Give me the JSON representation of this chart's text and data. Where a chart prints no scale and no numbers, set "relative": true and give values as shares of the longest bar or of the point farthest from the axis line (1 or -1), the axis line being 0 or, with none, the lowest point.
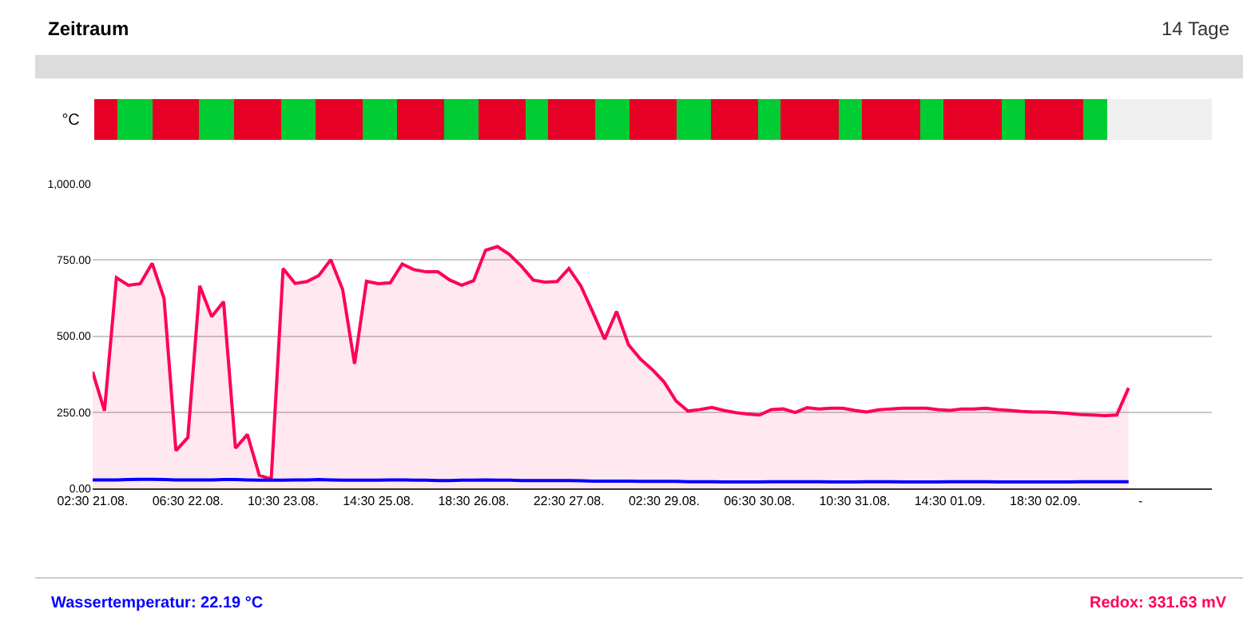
{
  "chart_data": [
    {
      "type": "other",
      "title": "Zeitraum",
      "annotations": [
        "14 Tage"
      ]
    },
    {
      "type": "bar",
      "orientation": "horizontal",
      "stacked": true,
      "relative": true,
      "categories": [
        "°C"
      ],
      "series": [
        {
          "color": "#e60026",
          "values": [
            0.021
          ]
        },
        {
          "color": "#00cc33",
          "values": [
            0.031
          ]
        },
        {
          "color": "#e60026",
          "values": [
            0.042
          ]
        },
        {
          "color": "#00cc33",
          "values": [
            0.031
          ]
        },
        {
          "color": "#e60026",
          "values": [
            0.042
          ]
        },
        {
          "color": "#00cc33",
          "values": [
            0.031
          ]
        },
        {
          "color": "#e60026",
          "values": [
            0.042
          ]
        },
        {
          "color": "#00cc33",
          "values": [
            0.031
          ]
        },
        {
          "color": "#e60026",
          "values": [
            0.042
          ]
        },
        {
          "color": "#00cc33",
          "values": [
            0.031
          ]
        },
        {
          "color": "#e60026",
          "values": [
            0.042
          ]
        },
        {
          "color": "#00cc33",
          "values": [
            0.02
          ]
        },
        {
          "color": "#e60026",
          "values": [
            0.042
          ]
        },
        {
          "color": "#00cc33",
          "values": [
            0.031
          ]
        },
        {
          "color": "#e60026",
          "values": [
            0.042
          ]
        },
        {
          "color": "#00cc33",
          "values": [
            0.031
          ]
        },
        {
          "color": "#e60026",
          "values": [
            0.042
          ]
        },
        {
          "color": "#00cc33",
          "values": [
            0.02
          ]
        },
        {
          "color": "#e60026",
          "values": [
            0.052
          ]
        },
        {
          "color": "#00cc33",
          "values": [
            0.021
          ]
        },
        {
          "color": "#e60026",
          "values": [
            0.052
          ]
        },
        {
          "color": "#00cc33",
          "values": [
            0.021
          ]
        },
        {
          "color": "#e60026",
          "values": [
            0.052
          ]
        },
        {
          "color": "#00cc33",
          "values": [
            0.021
          ]
        },
        {
          "color": "#e60026",
          "values": [
            0.052
          ]
        },
        {
          "color": "#00cc33",
          "values": [
            0.021
          ]
        },
        {
          "color": "#efefef",
          "values": [
            0.094
          ]
        }
      ]
    },
    {
      "type": "line",
      "categories": [
        "02:30 21.08.",
        null,
        null,
        null,
        null,
        null,
        null,
        null,
        "06:30 22.08.",
        null,
        null,
        null,
        null,
        null,
        null,
        null,
        "10:30 23.08.",
        null,
        null,
        null,
        null,
        null,
        null,
        null,
        "14:30 25.08.",
        null,
        null,
        null,
        null,
        null,
        null,
        null,
        "18:30 26.08.",
        null,
        null,
        null,
        null,
        null,
        null,
        null,
        "22:30 27.08.",
        null,
        null,
        null,
        null,
        null,
        null,
        null,
        "02:30 29.08.",
        null,
        null,
        null,
        null,
        null,
        null,
        null,
        "06:30 30.08.",
        null,
        null,
        null,
        null,
        null,
        null,
        null,
        "10:30 31.08.",
        null,
        null,
        null,
        null,
        null,
        null,
        null,
        "14:30 01.09.",
        null,
        null,
        null,
        null,
        null,
        null,
        null,
        "18:30 02.09.",
        null,
        null,
        null,
        null,
        null,
        null,
        null,
        "-",
        null,
        null,
        null,
        null,
        null,
        null
      ],
      "ylim": [
        0,
        1000
      ],
      "yticks": [
        {
          "value": 0,
          "label": "0.00"
        },
        {
          "value": 250,
          "label": "250.00"
        },
        {
          "value": 500,
          "label": "500.00"
        },
        {
          "value": 750,
          "label": "750.00"
        },
        {
          "value": 1000,
          "label": "1,000.00"
        }
      ],
      "grid": "y",
      "legend": "bottom",
      "series": [
        {
          "name": "Redox: 331.63 mV",
          "type": "area",
          "color": "#ff0055",
          "values": [
            383,
            255,
            692,
            667,
            672,
            739,
            624,
            124,
            167,
            665,
            564,
            613,
            132,
            177,
            43,
            31,
            722,
            673,
            679,
            699,
            751,
            653,
            409,
            680,
            672,
            675,
            737,
            718,
            711,
            711,
            684,
            667,
            682,
            782,
            794,
            768,
            730,
            684,
            677,
            679,
            722,
            665,
            579,
            490,
            581,
            472,
            425,
            390,
            349,
            287,
            254,
            259,
            266,
            256,
            249,
            244,
            241,
            259,
            261,
            249,
            265,
            261,
            263,
            263,
            256,
            251,
            258,
            261,
            263,
            263,
            263,
            259,
            256,
            261,
            261,
            263,
            259,
            256,
            253,
            251,
            251,
            249,
            246,
            242,
            241,
            239,
            241,
            330,
            null,
            null,
            null,
            null,
            null,
            null,
            null
          ]
        },
        {
          "name": "Wassertemperatur: 22.19 °C",
          "type": "line",
          "color": "#0000ff",
          "values": [
            28,
            28,
            28,
            29,
            30,
            30,
            29,
            28,
            28,
            28,
            28,
            29,
            29,
            28,
            27,
            27,
            27,
            28,
            28,
            29,
            28,
            27,
            27,
            27,
            27,
            28,
            28,
            27,
            27,
            26,
            26,
            27,
            27,
            28,
            27,
            27,
            26,
            26,
            26,
            26,
            26,
            25,
            24,
            24,
            24,
            24,
            23,
            23,
            23,
            23,
            22,
            22,
            22,
            21,
            21,
            21,
            21,
            22,
            22,
            22,
            22,
            22,
            21,
            21,
            21,
            22,
            22,
            22,
            21,
            21,
            21,
            21,
            22,
            22,
            22,
            22,
            21,
            21,
            21,
            21,
            21,
            21,
            21,
            22,
            22,
            22,
            22,
            22,
            null,
            null,
            null,
            null,
            null,
            null,
            null
          ]
        }
      ]
    }
  ]
}
